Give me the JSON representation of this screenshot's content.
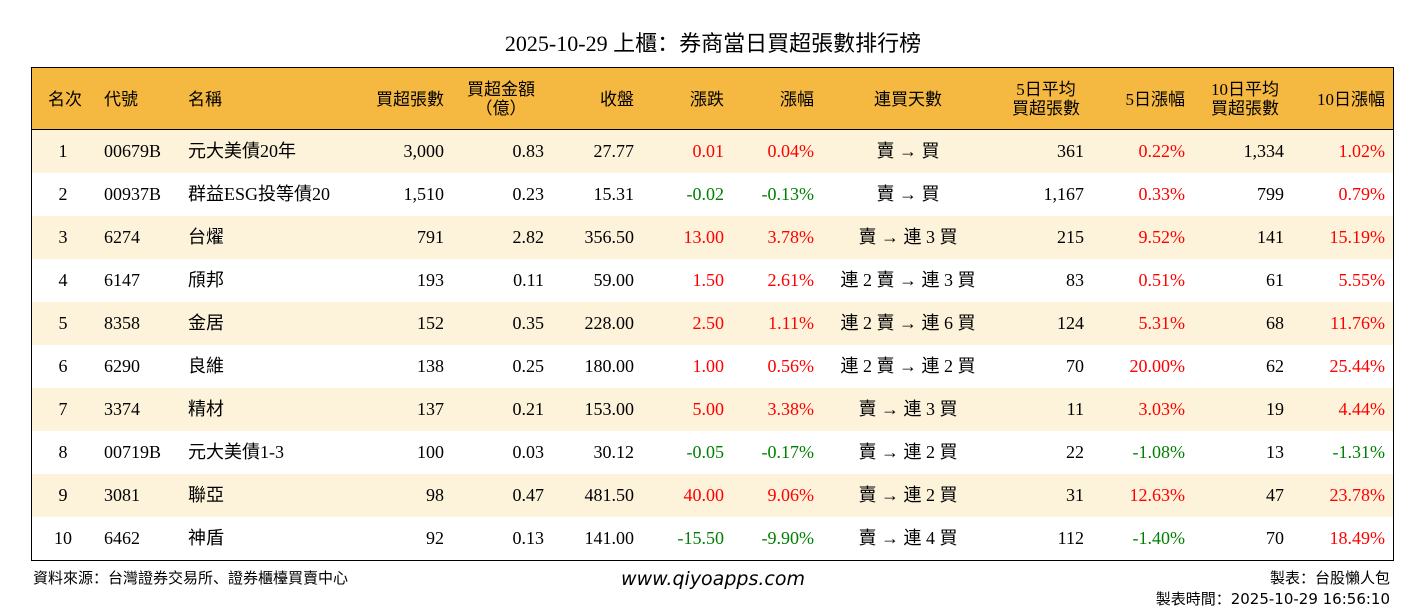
{
  "header": {
    "title": "2025-10-29 上櫃：券商當日買超張數排行榜"
  },
  "table": {
    "headers": [
      [
        "名次"
      ],
      [
        "代號"
      ],
      [
        "名稱"
      ],
      [
        "買超張數"
      ],
      [
        "買超金額",
        "（億）"
      ],
      [
        "收盤"
      ],
      [
        "漲跌"
      ],
      [
        "漲幅"
      ],
      [
        "連買天數"
      ],
      [
        "5日平均",
        "買超張數"
      ],
      [
        "5日漲幅"
      ],
      [
        "10日平均",
        "買超張數"
      ],
      [
        "10日漲幅"
      ]
    ],
    "rows": [
      [
        "1",
        "00679B",
        "元大美債20年",
        "3,000",
        "0.83",
        "27.77",
        "0.01",
        "0.04%",
        "賣 → 買",
        "361",
        "0.22%",
        "1,334",
        "1.02%"
      ],
      [
        "2",
        "00937B",
        "群益ESG投等債20",
        "1,510",
        "0.23",
        "15.31",
        "-0.02",
        "-0.13%",
        "賣 → 買",
        "1,167",
        "0.33%",
        "799",
        "0.79%"
      ],
      [
        "3",
        "6274",
        "台燿",
        "791",
        "2.82",
        "356.50",
        "13.00",
        "3.78%",
        "賣 → 連 3 買",
        "215",
        "9.52%",
        "141",
        "15.19%"
      ],
      [
        "4",
        "6147",
        "頎邦",
        "193",
        "0.11",
        "59.00",
        "1.50",
        "2.61%",
        "連 2 賣 → 連 3 買",
        "83",
        "0.51%",
        "61",
        "5.55%"
      ],
      [
        "5",
        "8358",
        "金居",
        "152",
        "0.35",
        "228.00",
        "2.50",
        "1.11%",
        "連 2 賣 → 連 6 買",
        "124",
        "5.31%",
        "68",
        "11.76%"
      ],
      [
        "6",
        "6290",
        "良維",
        "138",
        "0.25",
        "180.00",
        "1.00",
        "0.56%",
        "連 2 賣 → 連 2 買",
        "70",
        "20.00%",
        "62",
        "25.44%"
      ],
      [
        "7",
        "3374",
        "精材",
        "137",
        "0.21",
        "153.00",
        "5.00",
        "3.38%",
        "賣 → 連 3 買",
        "11",
        "3.03%",
        "19",
        "4.44%"
      ],
      [
        "8",
        "00719B",
        "元大美債1-3",
        "100",
        "0.03",
        "30.12",
        "-0.05",
        "-0.17%",
        "賣 → 連 2 買",
        "22",
        "-1.08%",
        "13",
        "-1.31%"
      ],
      [
        "9",
        "3081",
        "聯亞",
        "98",
        "0.47",
        "481.50",
        "40.00",
        "9.06%",
        "賣 → 連 2 買",
        "31",
        "12.63%",
        "47",
        "23.78%"
      ],
      [
        "10",
        "6462",
        "神盾",
        "92",
        "0.13",
        "141.00",
        "-15.50",
        "-9.90%",
        "賣 → 連 4 買",
        "112",
        "-1.40%",
        "70",
        "18.49%"
      ]
    ],
    "colors": {
      "up": "#ff0000",
      "down": "#008000",
      "header": "#f5b840",
      "stripe": "#fdf2da"
    }
  },
  "footer": {
    "source": "資料來源：台灣證券交易所、證券櫃檯買賣中心",
    "site": "www.qiyoapps.com",
    "author": "製表：台股懶人包",
    "time": "製表時間：2025-10-29 16:56:10"
  }
}
